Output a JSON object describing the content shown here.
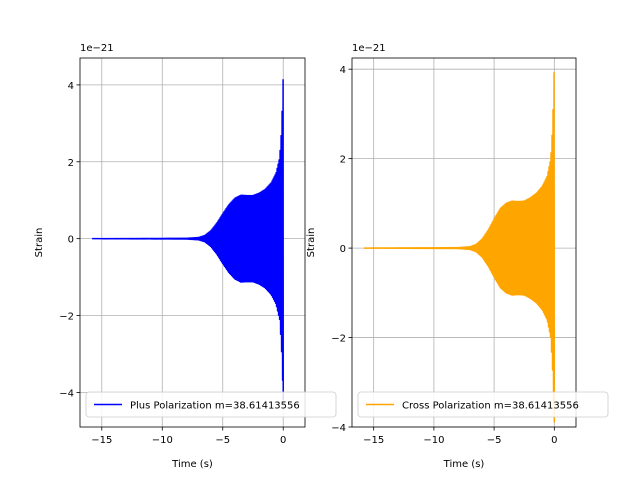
{
  "chart_data": [
    {
      "type": "line",
      "x_scale_note": "",
      "offset_label": "1e−21",
      "xlabel": "Time (s)",
      "ylabel": "Strain",
      "xlim": [
        -16.8,
        1.8
      ],
      "ylim": [
        -4.9,
        4.7
      ],
      "xticks": [
        -15,
        -10,
        -5,
        0
      ],
      "xtick_labels": [
        "−15",
        "−10",
        "−5",
        "0"
      ],
      "yticks": [
        -4,
        -2,
        0,
        2,
        4
      ],
      "ytick_labels": [
        "−4",
        "−2",
        "0",
        "2",
        "4"
      ],
      "grid": true,
      "legend_position": "lower-left",
      "series": [
        {
          "name": "Plus Polarization m=38.61413556",
          "color": "#0000ff",
          "t_start": -15.8,
          "t_end": 0.0,
          "envelope": [
            [
              -15.8,
              0.0
            ],
            [
              -8.0,
              0.01
            ],
            [
              -7.0,
              0.03
            ],
            [
              -6.5,
              0.08
            ],
            [
              -6.0,
              0.2
            ],
            [
              -5.5,
              0.4
            ],
            [
              -5.0,
              0.65
            ],
            [
              -4.5,
              0.88
            ],
            [
              -4.0,
              1.05
            ],
            [
              -3.5,
              1.13
            ],
            [
              -3.0,
              1.12
            ],
            [
              -2.5,
              1.12
            ],
            [
              -2.0,
              1.18
            ],
            [
              -1.5,
              1.28
            ],
            [
              -1.0,
              1.45
            ],
            [
              -0.6,
              1.7
            ],
            [
              -0.3,
              2.1
            ],
            [
              -0.15,
              2.8
            ],
            [
              -0.05,
              3.7
            ],
            [
              0.0,
              4.25
            ]
          ],
          "final_value": -4.2
        }
      ]
    },
    {
      "type": "line",
      "offset_label": "1e−21",
      "xlabel": "Time (s)",
      "ylabel": "Strain",
      "xlim": [
        -16.8,
        1.8
      ],
      "ylim": [
        -4.0,
        4.25
      ],
      "xticks": [
        -15,
        -10,
        -5,
        0
      ],
      "xtick_labels": [
        "−15",
        "−10",
        "−5",
        "0"
      ],
      "yticks": [
        -4,
        -2,
        0,
        2,
        4
      ],
      "ytick_labels": [
        "−4",
        "−2",
        "0",
        "2",
        "4"
      ],
      "grid": true,
      "legend_position": "lower-left",
      "series": [
        {
          "name": "Cross Polarization m=38.61413556",
          "color": "#ffa500",
          "t_start": -15.8,
          "t_end": 0.0,
          "envelope": [
            [
              -15.8,
              0.0
            ],
            [
              -8.0,
              0.01
            ],
            [
              -7.0,
              0.03
            ],
            [
              -6.5,
              0.08
            ],
            [
              -6.0,
              0.2
            ],
            [
              -5.5,
              0.4
            ],
            [
              -5.0,
              0.65
            ],
            [
              -4.5,
              0.88
            ],
            [
              -4.0,
              1.0
            ],
            [
              -3.5,
              1.05
            ],
            [
              -3.0,
              1.04
            ],
            [
              -2.5,
              1.05
            ],
            [
              -2.0,
              1.12
            ],
            [
              -1.5,
              1.22
            ],
            [
              -1.0,
              1.38
            ],
            [
              -0.6,
              1.6
            ],
            [
              -0.3,
              2.0
            ],
            [
              -0.15,
              2.7
            ],
            [
              -0.05,
              3.6
            ],
            [
              0.0,
              4.2
            ]
          ],
          "final_value": -3.9
        }
      ]
    }
  ]
}
